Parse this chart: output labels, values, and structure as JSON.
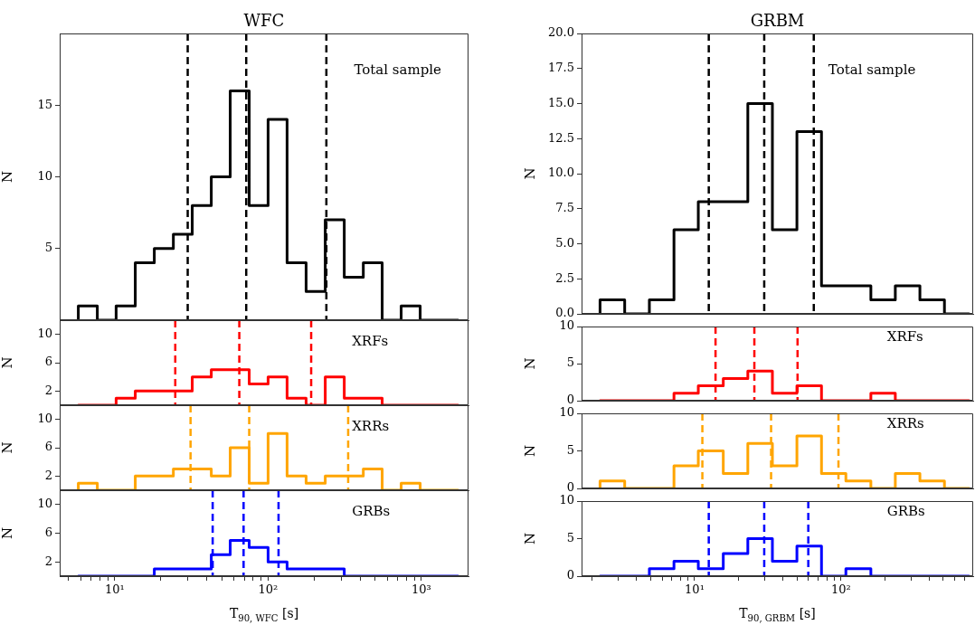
{
  "chart_data": [
    {
      "type": "histogram",
      "title": "WFC",
      "ylabel": "N",
      "color": "#000000",
      "log": "x",
      "tick_labels": "y",
      "xlim": [
        4.37,
        2030
      ],
      "ylim": [
        0,
        20
      ],
      "yticks": [
        5,
        10,
        15
      ],
      "bins": [
        5.78,
        7.69,
        10.2,
        13.6,
        18.1,
        24.1,
        32.0,
        42.6,
        56.6,
        75.3,
        100,
        133,
        177,
        236,
        314,
        418,
        555,
        738,
        982,
        1306,
        1738
      ],
      "values": [
        1,
        0,
        1,
        4,
        5,
        6,
        8,
        10,
        16,
        8,
        14,
        4,
        2,
        7,
        3,
        4,
        0,
        1,
        0,
        0
      ],
      "ref_lines": [
        {
          "axis": "x",
          "value": 29.9,
          "color": "#000000",
          "line_style": "dashed"
        },
        {
          "axis": "x",
          "value": 72,
          "color": "#000000",
          "line_style": "dashed"
        },
        {
          "axis": "x",
          "value": 240,
          "color": "#000000",
          "line_style": "dashed"
        }
      ],
      "annotations": [
        "Total sample"
      ]
    },
    {
      "type": "histogram",
      "ylabel": "N",
      "color": "#ff0000",
      "log": "x",
      "tick_labels": "y",
      "xlim": [
        4.37,
        2030
      ],
      "ylim": [
        0,
        12
      ],
      "yticks": [
        2,
        6,
        10
      ],
      "bins": [
        5.78,
        7.69,
        10.2,
        13.6,
        18.1,
        24.1,
        32.0,
        42.6,
        56.6,
        75.3,
        100,
        133,
        177,
        236,
        314,
        418,
        555,
        738,
        982,
        1306,
        1738
      ],
      "values": [
        0,
        0,
        1,
        2,
        2,
        2,
        4,
        5,
        5,
        3,
        4,
        1,
        0,
        4,
        1,
        1,
        0,
        0,
        0,
        0
      ],
      "ref_lines": [
        {
          "axis": "x",
          "value": 24.8,
          "color": "#ff0000",
          "line_style": "dashed"
        },
        {
          "axis": "x",
          "value": 64.9,
          "color": "#ff0000",
          "line_style": "dashed"
        },
        {
          "axis": "x",
          "value": 191,
          "color": "#ff0000",
          "line_style": "dashed"
        }
      ],
      "annotations": [
        "XRFs"
      ]
    },
    {
      "type": "histogram",
      "ylabel": "N",
      "color": "#ffa500",
      "log": "x",
      "tick_labels": "y",
      "xlim": [
        4.37,
        2030
      ],
      "ylim": [
        0,
        12
      ],
      "yticks": [
        2,
        6,
        10
      ],
      "bins": [
        5.78,
        7.69,
        10.2,
        13.6,
        18.1,
        24.1,
        32.0,
        42.6,
        56.6,
        75.3,
        100,
        133,
        177,
        236,
        314,
        418,
        555,
        738,
        982,
        1306,
        1738
      ],
      "values": [
        1,
        0,
        0,
        2,
        2,
        3,
        3,
        2,
        6,
        1,
        8,
        2,
        1,
        2,
        2,
        3,
        0,
        1,
        0,
        0
      ],
      "ref_lines": [
        {
          "axis": "x",
          "value": 31.2,
          "color": "#ffa500",
          "line_style": "dashed"
        },
        {
          "axis": "x",
          "value": 75.3,
          "color": "#ffa500",
          "line_style": "dashed"
        },
        {
          "axis": "x",
          "value": 333,
          "color": "#ffa500",
          "line_style": "dashed"
        }
      ],
      "annotations": [
        "XRRs"
      ]
    },
    {
      "type": "histogram",
      "xlabel": "T$_{90, WFC}$ [s]",
      "ylabel": "N",
      "color": "#0000ff",
      "log": "x",
      "xlim": [
        4.37,
        2030
      ],
      "ylim": [
        0,
        12
      ],
      "yticks": [
        2,
        6,
        10
      ],
      "xticks": [
        {
          "value": 5,
          "label": null
        },
        {
          "value": 6,
          "label": null
        },
        {
          "value": 7,
          "label": null
        },
        {
          "value": 8,
          "label": null
        },
        {
          "value": 9,
          "label": null
        },
        {
          "value": 10,
          "label": "10¹"
        },
        {
          "value": 20,
          "label": null
        },
        {
          "value": 30,
          "label": null
        },
        {
          "value": 40,
          "label": null
        },
        {
          "value": 50,
          "label": null
        },
        {
          "value": 60,
          "label": null
        },
        {
          "value": 70,
          "label": null
        },
        {
          "value": 80,
          "label": null
        },
        {
          "value": 90,
          "label": null
        },
        {
          "value": 100,
          "label": "10²"
        },
        {
          "value": 200,
          "label": null
        },
        {
          "value": 300,
          "label": null
        },
        {
          "value": 400,
          "label": null
        },
        {
          "value": 500,
          "label": null
        },
        {
          "value": 600,
          "label": null
        },
        {
          "value": 700,
          "label": null
        },
        {
          "value": 800,
          "label": null
        },
        {
          "value": 900,
          "label": null
        },
        {
          "value": 1000,
          "label": "10³"
        }
      ],
      "bins": [
        5.78,
        7.69,
        10.2,
        13.6,
        18.1,
        24.1,
        32.0,
        42.6,
        56.6,
        75.3,
        100,
        133,
        177,
        236,
        314,
        418,
        555,
        738,
        982,
        1306,
        1738
      ],
      "values": [
        0,
        0,
        0,
        0,
        1,
        1,
        1,
        3,
        5,
        4,
        2,
        1,
        1,
        1,
        0,
        0,
        0,
        0,
        0,
        0
      ],
      "ref_lines": [
        {
          "axis": "x",
          "value": 43.5,
          "color": "#0000ff",
          "line_style": "dashed"
        },
        {
          "axis": "x",
          "value": 69.2,
          "color": "#0000ff",
          "line_style": "dashed"
        },
        {
          "axis": "x",
          "value": 117,
          "color": "#0000ff",
          "line_style": "dashed"
        }
      ],
      "annotations": [
        "GRBs"
      ]
    },
    {
      "type": "histogram",
      "title": "GRBM",
      "ylabel": "N",
      "color": "#000000",
      "log": "x",
      "tick_labels": "y",
      "xlim": [
        1.69,
        800
      ],
      "ylim": [
        0,
        20
      ],
      "yticks": [
        {
          "value": 0,
          "label": "0.0"
        },
        {
          "value": 2.5,
          "label": "2.5"
        },
        {
          "value": 5,
          "label": "5.0"
        },
        {
          "value": 7.5,
          "label": "7.5"
        },
        {
          "value": 10,
          "label": "10.0"
        },
        {
          "value": 12.5,
          "label": "12.5"
        },
        {
          "value": 15,
          "label": "15.0"
        },
        {
          "value": 17.5,
          "label": "17.5"
        },
        {
          "value": 20,
          "label": "20.0"
        }
      ],
      "bins": [
        2.26,
        3.33,
        4.91,
        7.23,
        10.6,
        15.7,
        23.1,
        34.0,
        50.0,
        73.6,
        108,
        160,
        235,
        346,
        509,
        750
      ],
      "values": [
        1,
        0,
        1,
        6,
        8,
        8,
        15,
        6,
        13,
        2,
        2,
        1,
        2,
        1,
        0
      ],
      "ref_lines": [
        {
          "axis": "x",
          "value": 12.5,
          "color": "#000000",
          "line_style": "dashed"
        },
        {
          "axis": "x",
          "value": 29.9,
          "color": "#000000",
          "line_style": "dashed"
        },
        {
          "axis": "x",
          "value": 65.2,
          "color": "#000000",
          "line_style": "dashed"
        }
      ],
      "annotations": [
        "Total sample"
      ]
    },
    {
      "type": "histogram",
      "ylabel": "N",
      "color": "#ff0000",
      "log": "x",
      "tick_labels": "y",
      "xlim": [
        1.69,
        800
      ],
      "ylim": [
        0,
        10
      ],
      "yticks": [
        0,
        5,
        10
      ],
      "bins": [
        2.26,
        3.33,
        4.91,
        7.23,
        10.6,
        15.7,
        23.1,
        34.0,
        50.0,
        73.6,
        108,
        160,
        235,
        346,
        509,
        750
      ],
      "values": [
        0,
        0,
        0,
        1,
        2,
        3,
        4,
        1,
        2,
        0,
        0,
        1,
        0,
        0,
        0
      ],
      "ref_lines": [
        {
          "axis": "x",
          "value": 13.9,
          "color": "#ff0000",
          "line_style": "dashed"
        },
        {
          "axis": "x",
          "value": 25.6,
          "color": "#ff0000",
          "line_style": "dashed"
        },
        {
          "axis": "x",
          "value": 50.5,
          "color": "#ff0000",
          "line_style": "dashed"
        }
      ],
      "annotations": [
        "XRFs"
      ]
    },
    {
      "type": "histogram",
      "ylabel": "N",
      "color": "#ffa500",
      "log": "x",
      "tick_labels": "y",
      "xlim": [
        1.69,
        800
      ],
      "ylim": [
        0,
        10
      ],
      "yticks": [
        0,
        5,
        10
      ],
      "bins": [
        2.26,
        3.33,
        4.91,
        7.23,
        10.6,
        15.7,
        23.1,
        34.0,
        50.0,
        73.6,
        108,
        160,
        235,
        346,
        509,
        750
      ],
      "values": [
        1,
        0,
        0,
        3,
        5,
        2,
        6,
        3,
        7,
        2,
        1,
        0,
        2,
        1,
        0
      ],
      "ref_lines": [
        {
          "axis": "x",
          "value": 11.3,
          "color": "#ffa500",
          "line_style": "dashed"
        },
        {
          "axis": "x",
          "value": 33.3,
          "color": "#ffa500",
          "line_style": "dashed"
        },
        {
          "axis": "x",
          "value": 96.1,
          "color": "#ffa500",
          "line_style": "dashed"
        }
      ],
      "annotations": [
        "XRRs"
      ]
    },
    {
      "type": "histogram",
      "xlabel": "T$_{90, GRBM}$ [s]",
      "ylabel": "N",
      "color": "#0000ff",
      "log": "x",
      "xlim": [
        1.69,
        800
      ],
      "ylim": [
        0,
        10
      ],
      "yticks": [
        0,
        5,
        10
      ],
      "xticks": [
        {
          "value": 2,
          "label": null
        },
        {
          "value": 3,
          "label": null
        },
        {
          "value": 4,
          "label": null
        },
        {
          "value": 5,
          "label": null
        },
        {
          "value": 6,
          "label": null
        },
        {
          "value": 7,
          "label": null
        },
        {
          "value": 8,
          "label": null
        },
        {
          "value": 9,
          "label": null
        },
        {
          "value": 10,
          "label": "10¹"
        },
        {
          "value": 20,
          "label": null
        },
        {
          "value": 30,
          "label": null
        },
        {
          "value": 40,
          "label": null
        },
        {
          "value": 50,
          "label": null
        },
        {
          "value": 60,
          "label": null
        },
        {
          "value": 70,
          "label": null
        },
        {
          "value": 80,
          "label": null
        },
        {
          "value": 90,
          "label": null
        },
        {
          "value": 100,
          "label": "10²"
        },
        {
          "value": 200,
          "label": null
        },
        {
          "value": 300,
          "label": null
        },
        {
          "value": 400,
          "label": null
        },
        {
          "value": 500,
          "label": null
        },
        {
          "value": 600,
          "label": null
        },
        {
          "value": 700,
          "label": null
        }
      ],
      "bins": [
        2.26,
        3.33,
        4.91,
        7.23,
        10.6,
        15.7,
        23.1,
        34.0,
        50.0,
        73.6,
        108,
        160,
        235,
        346,
        509,
        750
      ],
      "values": [
        0,
        0,
        1,
        2,
        1,
        3,
        5,
        2,
        4,
        0,
        1,
        0,
        0,
        0,
        0
      ],
      "ref_lines": [
        {
          "axis": "x",
          "value": 12.5,
          "color": "#0000ff",
          "line_style": "dashed"
        },
        {
          "axis": "x",
          "value": 29.9,
          "color": "#0000ff",
          "line_style": "dashed"
        },
        {
          "axis": "x",
          "value": 59.8,
          "color": "#0000ff",
          "line_style": "dashed"
        }
      ],
      "annotations": [
        "GRBs"
      ]
    }
  ]
}
